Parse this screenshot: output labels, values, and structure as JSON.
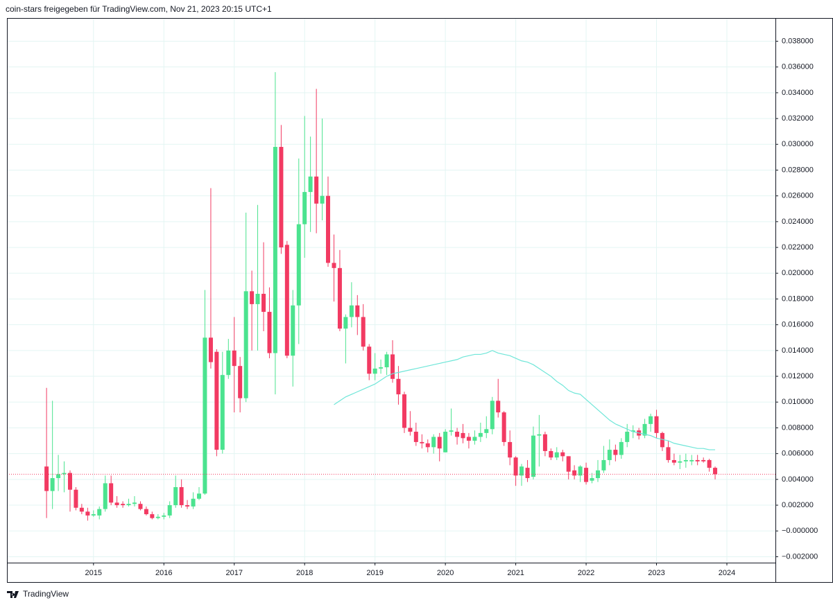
{
  "header": "coin-stars freigegeben für TradingView.com, Nov 21, 2023 20:15 UTC+1",
  "footer": "TradingView",
  "chart_data": {
    "type": "candlestick",
    "up_color": "#4be38f",
    "down_color": "#f23a62",
    "grid": true,
    "xlim": [
      2013.77,
      2024.69
    ],
    "xticks": [
      2015,
      2016,
      2017,
      2018,
      2019,
      2020,
      2021,
      2022,
      2023,
      2024
    ],
    "ylim": [
      -0.00246,
      0.0398
    ],
    "yticks": [
      {
        "value": -0.002,
        "label": "−0.002000"
      },
      {
        "value": 0,
        "label": "−0.000000"
      },
      {
        "value": 0.002,
        "label": "0.002000"
      },
      {
        "value": 0.004,
        "label": "0.004000"
      },
      {
        "value": 0.006,
        "label": "0.006000"
      },
      {
        "value": 0.008,
        "label": "0.008000"
      },
      {
        "value": 0.01,
        "label": "0.010000"
      },
      {
        "value": 0.012,
        "label": "0.012000"
      },
      {
        "value": 0.014,
        "label": "0.014000"
      },
      {
        "value": 0.016,
        "label": "0.016000"
      },
      {
        "value": 0.018,
        "label": "0.018000"
      },
      {
        "value": 0.02,
        "label": "0.020000"
      },
      {
        "value": 0.022,
        "label": "0.022000"
      },
      {
        "value": 0.024,
        "label": "0.024000"
      },
      {
        "value": 0.026,
        "label": "0.026000"
      },
      {
        "value": 0.028,
        "label": "0.028000"
      },
      {
        "value": 0.03,
        "label": "0.030000"
      },
      {
        "value": 0.032,
        "label": "0.032000"
      },
      {
        "value": 0.034,
        "label": "0.034000"
      },
      {
        "value": 0.036,
        "label": "0.036000"
      },
      {
        "value": 0.038,
        "label": "0.038000"
      }
    ],
    "x": [
      2014.333,
      2014.417,
      2014.5,
      2014.583,
      2014.667,
      2014.75,
      2014.833,
      2014.917,
      2015,
      2015.083,
      2015.167,
      2015.25,
      2015.333,
      2015.417,
      2015.5,
      2015.583,
      2015.667,
      2015.75,
      2015.833,
      2015.917,
      2016,
      2016.083,
      2016.167,
      2016.25,
      2016.333,
      2016.417,
      2016.5,
      2016.583,
      2016.667,
      2016.75,
      2016.833,
      2016.917,
      2017,
      2017.083,
      2017.167,
      2017.25,
      2017.333,
      2017.417,
      2017.5,
      2017.583,
      2017.667,
      2017.75,
      2017.833,
      2017.917,
      2018,
      2018.083,
      2018.167,
      2018.25,
      2018.333,
      2018.417,
      2018.5,
      2018.583,
      2018.667,
      2018.75,
      2018.833,
      2018.917,
      2019,
      2019.083,
      2019.167,
      2019.25,
      2019.333,
      2019.417,
      2019.5,
      2019.583,
      2019.667,
      2019.75,
      2019.833,
      2019.917,
      2020,
      2020.083,
      2020.167,
      2020.25,
      2020.333,
      2020.417,
      2020.5,
      2020.583,
      2020.667,
      2020.75,
      2020.833,
      2020.917,
      2021,
      2021.083,
      2021.167,
      2021.25,
      2021.333,
      2021.417,
      2021.5,
      2021.583,
      2021.667,
      2021.75,
      2021.833,
      2021.917,
      2022,
      2022.083,
      2022.167,
      2022.25,
      2022.333,
      2022.417,
      2022.5,
      2022.583,
      2022.667,
      2022.75,
      2022.833,
      2022.917,
      2023,
      2023.083,
      2023.167,
      2023.25,
      2023.333,
      2023.417,
      2023.5,
      2023.583,
      2023.667,
      2023.75,
      2023.833
    ],
    "open": [
      0.005,
      0.0031,
      0.0041,
      0.0044,
      0.0045,
      0.0032,
      0.0018,
      0.0015,
      0.0012,
      0.0012,
      0.0017,
      0.0037,
      0.0022,
      0.0021,
      0.002,
      0.0021,
      0.0021,
      0.0017,
      0.0013,
      0.001,
      0.0011,
      0.0012,
      0.002,
      0.0034,
      0.002,
      0.0019,
      0.0025,
      0.0029,
      0.015,
      0.0139,
      0.0063,
      0.0121,
      0.014,
      0.0128,
      0.0103,
      0.0186,
      0.0176,
      0.0184,
      0.017,
      0.0138,
      0.0298,
      0.0222,
      0.0136,
      0.0175,
      0.0238,
      0.0263,
      0.0275,
      0.0254,
      0.026,
      0.0208,
      0.0204,
      0.0157,
      0.0166,
      0.0175,
      0.0166,
      0.0143,
      0.0122,
      0.0126,
      0.0127,
      0.0137,
      0.0118,
      0.0106,
      0.008,
      0.0077,
      0.0069,
      0.0068,
      0.0065,
      0.0073,
      0.0061,
      0.0077,
      0.0077,
      0.0076,
      0.0073,
      0.007,
      0.0073,
      0.0076,
      0.0079,
      0.0101,
      0.0092,
      0.0069,
      0.0057,
      0.0043,
      0.0049,
      0.0042,
      0.0074,
      0.0075,
      0.0062,
      0.0057,
      0.0061,
      0.0058,
      0.0047,
      0.0043,
      0.0049,
      0.0039,
      0.0041,
      0.0047,
      0.0055,
      0.0063,
      0.0059,
      0.0069,
      0.0077,
      0.0078,
      0.0074,
      0.0083,
      0.0089,
      0.0076,
      0.0065,
      0.0055,
      0.0053,
      0.0054,
      0.0054,
      0.0055,
      0.0055,
      0.0055,
      0.0049
    ],
    "high": [
      0.0111,
      0.0101,
      0.0059,
      0.0054,
      0.0047,
      0.0034,
      0.0021,
      0.0018,
      0.0016,
      0.0019,
      0.0043,
      0.0043,
      0.0027,
      0.0023,
      0.0025,
      0.0027,
      0.0023,
      0.0019,
      0.0015,
      0.0013,
      0.0014,
      0.0023,
      0.0043,
      0.004,
      0.0024,
      0.003,
      0.0034,
      0.0187,
      0.0266,
      0.0141,
      0.0139,
      0.0149,
      0.0166,
      0.0135,
      0.0247,
      0.0202,
      0.0253,
      0.0224,
      0.0189,
      0.0356,
      0.0315,
      0.0225,
      0.0187,
      0.0289,
      0.0322,
      0.0306,
      0.0343,
      0.032,
      0.0275,
      0.023,
      0.0218,
      0.0168,
      0.0193,
      0.0183,
      0.0176,
      0.0145,
      0.0138,
      0.0133,
      0.0139,
      0.0148,
      0.0128,
      0.0108,
      0.0093,
      0.0084,
      0.0075,
      0.0071,
      0.0075,
      0.0076,
      0.0079,
      0.0095,
      0.008,
      0.0083,
      0.0076,
      0.0078,
      0.0084,
      0.0089,
      0.0104,
      0.0118,
      0.0093,
      0.0078,
      0.0058,
      0.0052,
      0.0055,
      0.0081,
      0.009,
      0.0077,
      0.0064,
      0.0065,
      0.0063,
      0.0058,
      0.0051,
      0.0051,
      0.0053,
      0.0045,
      0.0055,
      0.0066,
      0.0071,
      0.0067,
      0.0072,
      0.0083,
      0.0082,
      0.008,
      0.0087,
      0.0091,
      0.0094,
      0.0077,
      0.007,
      0.006,
      0.0059,
      0.006,
      0.0059,
      0.0059,
      0.0057,
      0.0056,
      0.005
    ],
    "low": [
      0.001,
      0.0017,
      0.0031,
      0.003,
      0.0015,
      0.0016,
      0.0013,
      0.0008,
      0.0011,
      0.0009,
      0.0015,
      0.002,
      0.0018,
      0.0018,
      0.0019,
      0.0019,
      0.0016,
      0.0012,
      0.0009,
      0.0009,
      0.0009,
      0.001,
      0.0018,
      0.0018,
      0.0017,
      0.0017,
      0.0024,
      0.0028,
      0.0126,
      0.0058,
      0.006,
      0.0118,
      0.0092,
      0.0092,
      0.01,
      0.014,
      0.014,
      0.0155,
      0.0134,
      0.0106,
      0.0215,
      0.0134,
      0.0112,
      0.0145,
      0.0212,
      0.0232,
      0.0231,
      0.0241,
      0.0205,
      0.0178,
      0.0155,
      0.013,
      0.0158,
      0.0152,
      0.014,
      0.0117,
      0.0117,
      0.0122,
      0.0121,
      0.0115,
      0.0098,
      0.0076,
      0.0074,
      0.0066,
      0.0064,
      0.0061,
      0.006,
      0.0054,
      0.0061,
      0.0074,
      0.0067,
      0.0068,
      0.0064,
      0.0067,
      0.0069,
      0.0072,
      0.0075,
      0.0088,
      0.0066,
      0.0051,
      0.0035,
      0.0035,
      0.0038,
      0.004,
      0.005,
      0.0058,
      0.0055,
      0.0055,
      0.0054,
      0.004,
      0.004,
      0.0038,
      0.0036,
      0.0037,
      0.0038,
      0.0045,
      0.0051,
      0.0054,
      0.0056,
      0.0065,
      0.0072,
      0.0071,
      0.0072,
      0.0077,
      0.0072,
      0.0062,
      0.0053,
      0.0051,
      0.0048,
      0.0049,
      0.0051,
      0.0051,
      0.0053,
      0.0046,
      0.004
    ],
    "close": [
      0.0031,
      0.0041,
      0.0044,
      0.0045,
      0.0032,
      0.0018,
      0.0015,
      0.0012,
      0.0013,
      0.0017,
      0.0037,
      0.0022,
      0.002,
      0.002,
      0.0021,
      0.0022,
      0.0017,
      0.0013,
      0.001,
      0.0011,
      0.0012,
      0.002,
      0.0034,
      0.002,
      0.0019,
      0.0025,
      0.0029,
      0.015,
      0.0131,
      0.0063,
      0.0121,
      0.014,
      0.0128,
      0.0103,
      0.0186,
      0.0176,
      0.0184,
      0.017,
      0.0138,
      0.0298,
      0.022,
      0.0136,
      0.0175,
      0.0238,
      0.0263,
      0.0275,
      0.0254,
      0.026,
      0.0208,
      0.0204,
      0.0157,
      0.0166,
      0.0175,
      0.0166,
      0.0143,
      0.0122,
      0.0126,
      0.0127,
      0.0137,
      0.0118,
      0.0106,
      0.008,
      0.0077,
      0.0069,
      0.0068,
      0.0065,
      0.0073,
      0.0064,
      0.0077,
      0.0078,
      0.0073,
      0.0072,
      0.007,
      0.0073,
      0.0076,
      0.0079,
      0.0101,
      0.0092,
      0.0069,
      0.0057,
      0.0043,
      0.005,
      0.0041,
      0.0074,
      0.0075,
      0.0062,
      0.0057,
      0.0061,
      0.0058,
      0.0046,
      0.0043,
      0.005,
      0.0038,
      0.0041,
      0.0047,
      0.0055,
      0.0063,
      0.0059,
      0.0069,
      0.0077,
      0.0078,
      0.0074,
      0.0083,
      0.0089,
      0.0076,
      0.0065,
      0.0055,
      0.0053,
      0.0054,
      0.0055,
      0.0055,
      0.0054,
      0.0054,
      0.0049,
      0.0044
    ],
    "lines": [
      {
        "color": "#6ee6d8",
        "values": [
          null,
          null,
          null,
          null,
          null,
          null,
          null,
          null,
          null,
          null,
          null,
          null,
          null,
          null,
          null,
          null,
          null,
          null,
          null,
          null,
          null,
          null,
          null,
          null,
          null,
          null,
          null,
          null,
          null,
          null,
          null,
          null,
          null,
          null,
          null,
          null,
          null,
          null,
          null,
          null,
          null,
          null,
          null,
          null,
          null,
          null,
          null,
          null,
          null,
          0.0098,
          0.0101,
          0.0104,
          0.0106,
          0.0108,
          0.011,
          0.0112,
          0.0114,
          0.0117,
          0.012,
          0.0122,
          0.0123,
          0.0124,
          0.0125,
          0.0126,
          0.0127,
          0.0128,
          0.0129,
          0.013,
          0.0131,
          0.0132,
          0.0133,
          0.0135,
          0.0136,
          0.0137,
          0.0137,
          0.0138,
          0.014,
          0.0138,
          0.0137,
          0.0136,
          0.0134,
          0.0132,
          0.0131,
          0.0129,
          0.0126,
          0.0123,
          0.012,
          0.0116,
          0.0113,
          0.0109,
          0.0107,
          0.0106,
          0.0102,
          0.0098,
          0.0094,
          0.009,
          0.0086,
          0.0083,
          0.0081,
          0.0079,
          0.0077,
          0.0076,
          0.0075,
          0.0074,
          0.0072,
          0.0071,
          0.007,
          0.0068,
          0.0067,
          0.0066,
          0.0065,
          0.0064,
          0.0064,
          0.0063,
          0.0063
        ]
      }
    ]
  }
}
